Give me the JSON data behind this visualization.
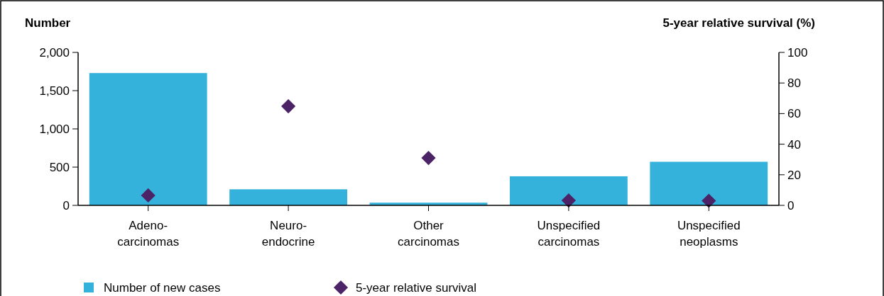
{
  "chart_data": {
    "type": "bar",
    "ylabel": "Number",
    "y2label": "5-year relative survival (%)",
    "categories": [
      "Adeno-\ncarcinomas",
      "Neuro-\nendocrine",
      "Other\ncarcinomas",
      "Unspecified\ncarcinomas",
      "Unspecified\nneoplasms"
    ],
    "series": [
      {
        "name": "Number of new cases",
        "type": "bar",
        "color": "#35b2dc",
        "values": [
          1730,
          210,
          35,
          380,
          570
        ]
      },
      {
        "name": "5-year relative survival",
        "type": "scatter",
        "axis": "y2",
        "color": "#4b2366",
        "marker": "diamond",
        "values": [
          6.5,
          64.8,
          31,
          3.2,
          3
        ]
      }
    ],
    "ylim": [
      0,
      2000
    ],
    "yticks": [
      0,
      {
        "value": 500,
        "label": "500"
      },
      {
        "value": 1000,
        "label": "1,000"
      },
      {
        "value": 1500,
        "label": "1,500"
      },
      {
        "value": 2000,
        "label": "2,000"
      }
    ],
    "y2lim": [
      0,
      100
    ],
    "y2ticks": [
      0,
      20,
      40,
      60,
      80,
      100
    ],
    "grid": false,
    "legend": "bottom"
  }
}
